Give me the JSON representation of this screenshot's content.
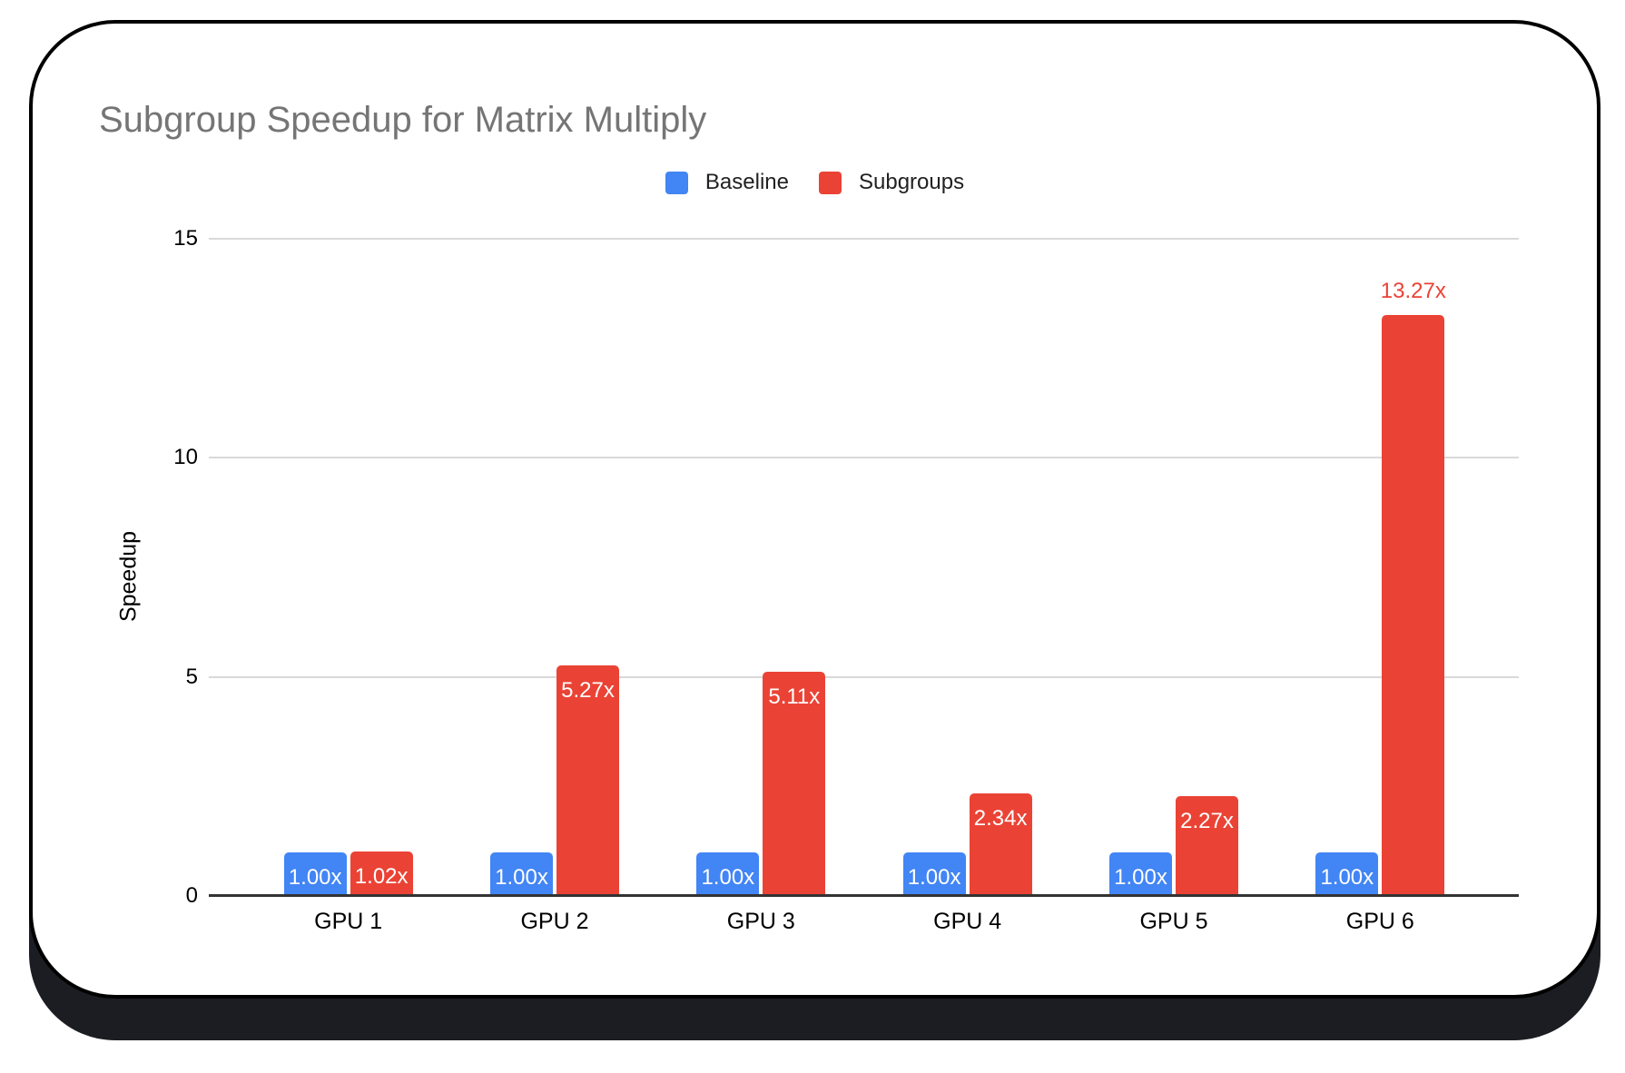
{
  "page": {
    "background": "#ffffff"
  },
  "card": {
    "background": "#ffffff",
    "border_color": "#000000",
    "shadow_color": "#1b1d22"
  },
  "title": {
    "text": "Subgroup Speedup for Matrix Multiply",
    "color": "#757575"
  },
  "legend": {
    "items": [
      {
        "label": "Baseline",
        "color": "#4285F4"
      },
      {
        "label": "Subgroups",
        "color": "#EA4335"
      }
    ]
  },
  "chart_data": {
    "type": "bar",
    "title": "Subgroup Speedup for Matrix Multiply",
    "categories": [
      "GPU 1",
      "GPU 2",
      "GPU 3",
      "GPU 4",
      "GPU 5",
      "GPU 6"
    ],
    "series": [
      {
        "name": "Baseline",
        "color": "#4285F4",
        "values": [
          1.0,
          1.0,
          1.0,
          1.0,
          1.0,
          1.0
        ],
        "data_labels": [
          "1.00x",
          "1.00x",
          "1.00x",
          "1.00x",
          "1.00x",
          "1.00x"
        ],
        "label_placement": [
          "inside",
          "inside",
          "inside",
          "inside",
          "inside",
          "inside"
        ]
      },
      {
        "name": "Subgroups",
        "color": "#EA4335",
        "values": [
          1.02,
          5.27,
          5.11,
          2.34,
          2.27,
          13.27
        ],
        "data_labels": [
          "1.02x",
          "5.27x",
          "5.11x",
          "2.34x",
          "2.27x",
          "13.27x"
        ],
        "label_placement": [
          "inside",
          "inside",
          "inside",
          "inside",
          "inside",
          "above"
        ]
      }
    ],
    "xlabel": "",
    "ylabel": "Speedup",
    "ylim": [
      0,
      15
    ],
    "y_ticks": [
      0,
      5,
      10,
      15
    ],
    "grid": true,
    "legend_position": "top",
    "colors": {
      "grid": "#d9d9d9",
      "axis": "#333333",
      "tick_text": "#000000",
      "inside_label_text": "#ffffff"
    }
  }
}
